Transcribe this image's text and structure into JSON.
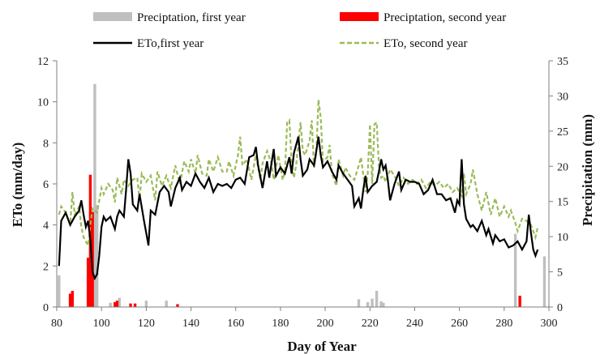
{
  "chart_data": {
    "type": "bar+line",
    "xlabel": "Day of Year",
    "ylabel_left": "ETo (mm/day)",
    "ylabel_right": "Precipitation (mm)",
    "xlim": [
      80,
      300
    ],
    "ylim_left": [
      0,
      12
    ],
    "ylim_right": [
      0,
      35
    ],
    "x_ticks": [
      80,
      100,
      120,
      140,
      160,
      180,
      200,
      220,
      240,
      260,
      280,
      300
    ],
    "y_ticks_left": [
      0,
      2,
      4,
      6,
      8,
      10,
      12
    ],
    "y_ticks_right": [
      0,
      5,
      10,
      15,
      20,
      25,
      30,
      35
    ],
    "grid": false,
    "legend_position": "top",
    "colors": {
      "precip_first": "#bfbfbf",
      "precip_second": "#ff0000",
      "eto_first": "#000000",
      "eto_second": "#9bbb59",
      "axis": "#7f7f7f"
    },
    "legend": [
      {
        "label": "Preciptation, first year",
        "kind": "bar",
        "color": "#bfbfbf"
      },
      {
        "label": "Preciptation, second year",
        "kind": "bar",
        "color": "#ff0000"
      },
      {
        "label": "ETo,first year",
        "kind": "line",
        "color": "#000000"
      },
      {
        "label": "ETo, second year",
        "kind": "dashed",
        "color": "#9bbb59"
      }
    ],
    "precip_first_year": [
      {
        "x": 81,
        "y": 4.5
      },
      {
        "x": 97,
        "y": 31.7
      },
      {
        "x": 98,
        "y": 14.5
      },
      {
        "x": 104,
        "y": 0.6
      },
      {
        "x": 108,
        "y": 1.3
      },
      {
        "x": 120,
        "y": 0.9
      },
      {
        "x": 129,
        "y": 0.9
      },
      {
        "x": 215,
        "y": 1.1
      },
      {
        "x": 219,
        "y": 0.7
      },
      {
        "x": 221,
        "y": 1.2
      },
      {
        "x": 223,
        "y": 2.3
      },
      {
        "x": 225,
        "y": 0.8
      },
      {
        "x": 226,
        "y": 0.6
      },
      {
        "x": 285,
        "y": 10.4
      },
      {
        "x": 298,
        "y": 7.2
      }
    ],
    "precip_second_year": [
      {
        "x": 86,
        "y": 1.9
      },
      {
        "x": 87,
        "y": 2.3
      },
      {
        "x": 94,
        "y": 7.0
      },
      {
        "x": 95,
        "y": 18.8
      },
      {
        "x": 96,
        "y": 13.5
      },
      {
        "x": 106,
        "y": 0.7
      },
      {
        "x": 107,
        "y": 0.9
      },
      {
        "x": 113,
        "y": 0.5
      },
      {
        "x": 115,
        "y": 0.5
      },
      {
        "x": 134,
        "y": 0.4
      },
      {
        "x": 287,
        "y": 1.6
      }
    ],
    "eto_first_year": [
      {
        "x": 81,
        "y": 2.0
      },
      {
        "x": 82,
        "y": 4.2
      },
      {
        "x": 84,
        "y": 4.6
      },
      {
        "x": 86,
        "y": 4.0
      },
      {
        "x": 88,
        "y": 4.4
      },
      {
        "x": 90,
        "y": 4.7
      },
      {
        "x": 91,
        "y": 5.2
      },
      {
        "x": 92,
        "y": 4.5
      },
      {
        "x": 93,
        "y": 3.9
      },
      {
        "x": 94,
        "y": 4.2
      },
      {
        "x": 95,
        "y": 3.3
      },
      {
        "x": 96,
        "y": 1.7
      },
      {
        "x": 97,
        "y": 1.4
      },
      {
        "x": 98,
        "y": 1.6
      },
      {
        "x": 99,
        "y": 2.5
      },
      {
        "x": 100,
        "y": 3.9
      },
      {
        "x": 101,
        "y": 4.4
      },
      {
        "x": 102,
        "y": 4.2
      },
      {
        "x": 104,
        "y": 4.4
      },
      {
        "x": 106,
        "y": 3.8
      },
      {
        "x": 107,
        "y": 4.4
      },
      {
        "x": 108,
        "y": 4.7
      },
      {
        "x": 110,
        "y": 4.4
      },
      {
        "x": 111,
        "y": 5.7
      },
      {
        "x": 112,
        "y": 7.2
      },
      {
        "x": 113,
        "y": 6.5
      },
      {
        "x": 114,
        "y": 5.0
      },
      {
        "x": 116,
        "y": 4.7
      },
      {
        "x": 117,
        "y": 5.5
      },
      {
        "x": 119,
        "y": 4.2
      },
      {
        "x": 120,
        "y": 3.6
      },
      {
        "x": 121,
        "y": 3.0
      },
      {
        "x": 122,
        "y": 4.7
      },
      {
        "x": 124,
        "y": 4.5
      },
      {
        "x": 126,
        "y": 5.6
      },
      {
        "x": 128,
        "y": 5.9
      },
      {
        "x": 130,
        "y": 5.6
      },
      {
        "x": 131,
        "y": 4.9
      },
      {
        "x": 133,
        "y": 5.8
      },
      {
        "x": 135,
        "y": 6.3
      },
      {
        "x": 136,
        "y": 5.7
      },
      {
        "x": 138,
        "y": 6.1
      },
      {
        "x": 140,
        "y": 5.9
      },
      {
        "x": 142,
        "y": 6.5
      },
      {
        "x": 144,
        "y": 6.1
      },
      {
        "x": 146,
        "y": 5.8
      },
      {
        "x": 148,
        "y": 6.3
      },
      {
        "x": 150,
        "y": 5.6
      },
      {
        "x": 152,
        "y": 6.0
      },
      {
        "x": 154,
        "y": 5.9
      },
      {
        "x": 156,
        "y": 6.0
      },
      {
        "x": 158,
        "y": 5.8
      },
      {
        "x": 160,
        "y": 6.2
      },
      {
        "x": 162,
        "y": 6.3
      },
      {
        "x": 164,
        "y": 6.0
      },
      {
        "x": 166,
        "y": 7.3
      },
      {
        "x": 168,
        "y": 7.4
      },
      {
        "x": 169,
        "y": 7.8
      },
      {
        "x": 170,
        "y": 6.9
      },
      {
        "x": 172,
        "y": 5.8
      },
      {
        "x": 174,
        "y": 7.1
      },
      {
        "x": 175,
        "y": 6.3
      },
      {
        "x": 177,
        "y": 7.7
      },
      {
        "x": 178,
        "y": 6.4
      },
      {
        "x": 180,
        "y": 6.8
      },
      {
        "x": 182,
        "y": 6.5
      },
      {
        "x": 184,
        "y": 7.3
      },
      {
        "x": 185,
        "y": 6.5
      },
      {
        "x": 186,
        "y": 7.5
      },
      {
        "x": 188,
        "y": 8.3
      },
      {
        "x": 189,
        "y": 7.2
      },
      {
        "x": 190,
        "y": 6.4
      },
      {
        "x": 192,
        "y": 6.7
      },
      {
        "x": 193,
        "y": 7.2
      },
      {
        "x": 195,
        "y": 6.9
      },
      {
        "x": 196,
        "y": 7.6
      },
      {
        "x": 197,
        "y": 8.3
      },
      {
        "x": 198,
        "y": 7.4
      },
      {
        "x": 199,
        "y": 6.8
      },
      {
        "x": 201,
        "y": 7.1
      },
      {
        "x": 203,
        "y": 6.6
      },
      {
        "x": 205,
        "y": 6.2
      },
      {
        "x": 206,
        "y": 6.9
      },
      {
        "x": 208,
        "y": 6.5
      },
      {
        "x": 210,
        "y": 6.2
      },
      {
        "x": 212,
        "y": 5.9
      },
      {
        "x": 213,
        "y": 4.9
      },
      {
        "x": 215,
        "y": 5.3
      },
      {
        "x": 216,
        "y": 4.8
      },
      {
        "x": 217,
        "y": 5.7
      },
      {
        "x": 218,
        "y": 6.4
      },
      {
        "x": 219,
        "y": 5.6
      },
      {
        "x": 221,
        "y": 5.9
      },
      {
        "x": 223,
        "y": 6.1
      },
      {
        "x": 224,
        "y": 6.6
      },
      {
        "x": 225,
        "y": 7.2
      },
      {
        "x": 226,
        "y": 6.7
      },
      {
        "x": 227,
        "y": 6.9
      },
      {
        "x": 228,
        "y": 6.2
      },
      {
        "x": 229,
        "y": 5.2
      },
      {
        "x": 231,
        "y": 6.0
      },
      {
        "x": 233,
        "y": 6.6
      },
      {
        "x": 234,
        "y": 5.7
      },
      {
        "x": 236,
        "y": 6.2
      },
      {
        "x": 238,
        "y": 6.1
      },
      {
        "x": 240,
        "y": 6.1
      },
      {
        "x": 242,
        "y": 6.0
      },
      {
        "x": 244,
        "y": 5.5
      },
      {
        "x": 246,
        "y": 5.7
      },
      {
        "x": 248,
        "y": 6.2
      },
      {
        "x": 250,
        "y": 5.5
      },
      {
        "x": 252,
        "y": 5.5
      },
      {
        "x": 254,
        "y": 5.2
      },
      {
        "x": 256,
        "y": 5.3
      },
      {
        "x": 258,
        "y": 4.6
      },
      {
        "x": 259,
        "y": 5.2
      },
      {
        "x": 260,
        "y": 5.0
      },
      {
        "x": 261,
        "y": 7.2
      },
      {
        "x": 262,
        "y": 5.0
      },
      {
        "x": 263,
        "y": 4.3
      },
      {
        "x": 265,
        "y": 3.9
      },
      {
        "x": 266,
        "y": 4.0
      },
      {
        "x": 268,
        "y": 3.7
      },
      {
        "x": 270,
        "y": 4.2
      },
      {
        "x": 272,
        "y": 3.5
      },
      {
        "x": 273,
        "y": 3.8
      },
      {
        "x": 275,
        "y": 3.1
      },
      {
        "x": 276,
        "y": 3.5
      },
      {
        "x": 278,
        "y": 3.2
      },
      {
        "x": 280,
        "y": 3.3
      },
      {
        "x": 282,
        "y": 2.9
      },
      {
        "x": 284,
        "y": 3.0
      },
      {
        "x": 286,
        "y": 3.2
      },
      {
        "x": 288,
        "y": 2.8
      },
      {
        "x": 290,
        "y": 3.2
      },
      {
        "x": 291,
        "y": 4.5
      },
      {
        "x": 292,
        "y": 3.6
      },
      {
        "x": 293,
        "y": 2.8
      },
      {
        "x": 294,
        "y": 2.5
      },
      {
        "x": 295,
        "y": 2.8
      }
    ],
    "eto_second_year": [
      {
        "x": 81,
        "y": 4.5
      },
      {
        "x": 82,
        "y": 4.9
      },
      {
        "x": 84,
        "y": 4.6
      },
      {
        "x": 86,
        "y": 4.0
      },
      {
        "x": 87,
        "y": 5.6
      },
      {
        "x": 88,
        "y": 4.5
      },
      {
        "x": 90,
        "y": 4.9
      },
      {
        "x": 91,
        "y": 3.9
      },
      {
        "x": 92,
        "y": 3.4
      },
      {
        "x": 94,
        "y": 3.0
      },
      {
        "x": 95,
        "y": 4.0
      },
      {
        "x": 96,
        "y": 4.8
      },
      {
        "x": 98,
        "y": 4.6
      },
      {
        "x": 100,
        "y": 5.8
      },
      {
        "x": 101,
        "y": 5.5
      },
      {
        "x": 103,
        "y": 6.0
      },
      {
        "x": 105,
        "y": 5.7
      },
      {
        "x": 106,
        "y": 5.1
      },
      {
        "x": 107,
        "y": 6.3
      },
      {
        "x": 109,
        "y": 5.5
      },
      {
        "x": 110,
        "y": 6.2
      },
      {
        "x": 112,
        "y": 5.9
      },
      {
        "x": 114,
        "y": 6.2
      },
      {
        "x": 116,
        "y": 6.3
      },
      {
        "x": 117,
        "y": 5.2
      },
      {
        "x": 118,
        "y": 6.5
      },
      {
        "x": 120,
        "y": 6.1
      },
      {
        "x": 122,
        "y": 6.4
      },
      {
        "x": 124,
        "y": 5.2
      },
      {
        "x": 125,
        "y": 6.6
      },
      {
        "x": 127,
        "y": 5.9
      },
      {
        "x": 129,
        "y": 6.4
      },
      {
        "x": 131,
        "y": 5.8
      },
      {
        "x": 133,
        "y": 6.9
      },
      {
        "x": 135,
        "y": 6.0
      },
      {
        "x": 137,
        "y": 7.1
      },
      {
        "x": 139,
        "y": 6.6
      },
      {
        "x": 140,
        "y": 7.2
      },
      {
        "x": 142,
        "y": 6.5
      },
      {
        "x": 143,
        "y": 7.4
      },
      {
        "x": 145,
        "y": 6.5
      },
      {
        "x": 147,
        "y": 6.4
      },
      {
        "x": 148,
        "y": 7.2
      },
      {
        "x": 150,
        "y": 6.6
      },
      {
        "x": 152,
        "y": 7.3
      },
      {
        "x": 154,
        "y": 6.6
      },
      {
        "x": 156,
        "y": 6.6
      },
      {
        "x": 157,
        "y": 7.1
      },
      {
        "x": 159,
        "y": 6.4
      },
      {
        "x": 160,
        "y": 6.9
      },
      {
        "x": 161,
        "y": 7.4
      },
      {
        "x": 162,
        "y": 8.3
      },
      {
        "x": 163,
        "y": 6.9
      },
      {
        "x": 165,
        "y": 7.2
      },
      {
        "x": 167,
        "y": 6.2
      },
      {
        "x": 169,
        "y": 7.4
      },
      {
        "x": 171,
        "y": 6.2
      },
      {
        "x": 172,
        "y": 7.0
      },
      {
        "x": 174,
        "y": 7.6
      },
      {
        "x": 176,
        "y": 7.0
      },
      {
        "x": 177,
        "y": 6.2
      },
      {
        "x": 179,
        "y": 7.4
      },
      {
        "x": 181,
        "y": 6.2
      },
      {
        "x": 182,
        "y": 6.6
      },
      {
        "x": 183,
        "y": 9.0
      },
      {
        "x": 184,
        "y": 9.1
      },
      {
        "x": 185,
        "y": 7.0
      },
      {
        "x": 186,
        "y": 6.3
      },
      {
        "x": 187,
        "y": 6.9
      },
      {
        "x": 188,
        "y": 8.0
      },
      {
        "x": 189,
        "y": 9.0
      },
      {
        "x": 190,
        "y": 7.6
      },
      {
        "x": 191,
        "y": 7.4
      },
      {
        "x": 193,
        "y": 8.1
      },
      {
        "x": 194,
        "y": 9.1
      },
      {
        "x": 195,
        "y": 6.8
      },
      {
        "x": 196,
        "y": 7.5
      },
      {
        "x": 197,
        "y": 10.1
      },
      {
        "x": 198,
        "y": 9.2
      },
      {
        "x": 199,
        "y": 7.1
      },
      {
        "x": 201,
        "y": 7.3
      },
      {
        "x": 202,
        "y": 7.9
      },
      {
        "x": 203,
        "y": 6.5
      },
      {
        "x": 205,
        "y": 5.9
      },
      {
        "x": 206,
        "y": 7.2
      },
      {
        "x": 208,
        "y": 6.4
      },
      {
        "x": 209,
        "y": 6.8
      },
      {
        "x": 211,
        "y": 6.4
      },
      {
        "x": 212,
        "y": 6.3
      },
      {
        "x": 213,
        "y": 6.2
      },
      {
        "x": 215,
        "y": 6.9
      },
      {
        "x": 216,
        "y": 7.3
      },
      {
        "x": 218,
        "y": 5.6
      },
      {
        "x": 219,
        "y": 6.5
      },
      {
        "x": 220,
        "y": 8.9
      },
      {
        "x": 221,
        "y": 6.0
      },
      {
        "x": 222,
        "y": 8.9
      },
      {
        "x": 223,
        "y": 9.0
      },
      {
        "x": 224,
        "y": 6.9
      },
      {
        "x": 225,
        "y": 6.3
      },
      {
        "x": 226,
        "y": 6.4
      },
      {
        "x": 227,
        "y": 6.1
      },
      {
        "x": 229,
        "y": 6.7
      },
      {
        "x": 231,
        "y": 6.4
      },
      {
        "x": 233,
        "y": 5.9
      },
      {
        "x": 235,
        "y": 6.3
      },
      {
        "x": 237,
        "y": 6.0
      },
      {
        "x": 239,
        "y": 6.2
      },
      {
        "x": 241,
        "y": 6.0
      },
      {
        "x": 243,
        "y": 6.2
      },
      {
        "x": 245,
        "y": 5.8
      },
      {
        "x": 247,
        "y": 6.1
      },
      {
        "x": 249,
        "y": 5.9
      },
      {
        "x": 251,
        "y": 6.1
      },
      {
        "x": 253,
        "y": 5.8
      },
      {
        "x": 255,
        "y": 6.0
      },
      {
        "x": 257,
        "y": 5.6
      },
      {
        "x": 259,
        "y": 5.8
      },
      {
        "x": 261,
        "y": 5.4
      },
      {
        "x": 262,
        "y": 6.5
      },
      {
        "x": 263,
        "y": 5.5
      },
      {
        "x": 265,
        "y": 6.0
      },
      {
        "x": 266,
        "y": 6.7
      },
      {
        "x": 268,
        "y": 5.5
      },
      {
        "x": 270,
        "y": 4.7
      },
      {
        "x": 272,
        "y": 5.6
      },
      {
        "x": 274,
        "y": 4.5
      },
      {
        "x": 276,
        "y": 5.3
      },
      {
        "x": 278,
        "y": 4.4
      },
      {
        "x": 280,
        "y": 4.9
      },
      {
        "x": 282,
        "y": 4.4
      },
      {
        "x": 283,
        "y": 4.7
      },
      {
        "x": 285,
        "y": 4.1
      },
      {
        "x": 286,
        "y": 3.7
      },
      {
        "x": 288,
        "y": 4.3
      },
      {
        "x": 290,
        "y": 4.2
      },
      {
        "x": 292,
        "y": 4.0
      },
      {
        "x": 294,
        "y": 3.4
      },
      {
        "x": 295,
        "y": 3.9
      }
    ]
  }
}
